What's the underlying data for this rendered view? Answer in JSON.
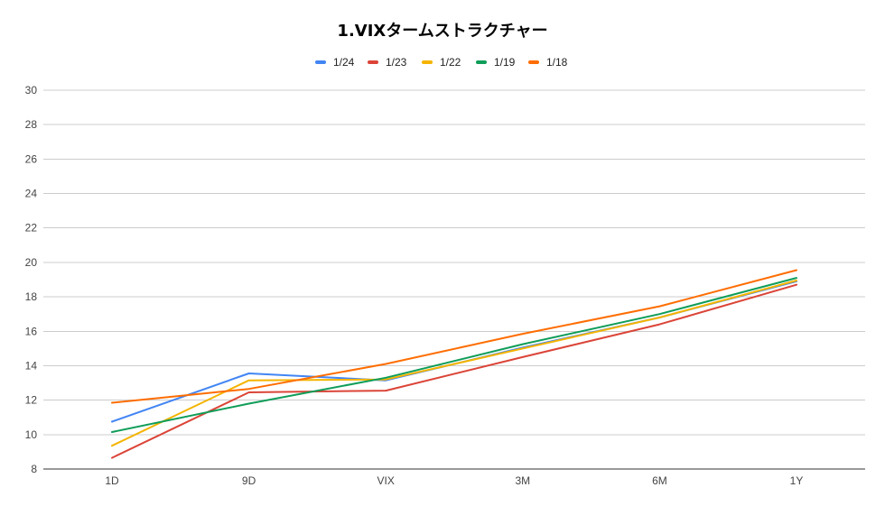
{
  "chart_data": {
    "type": "line",
    "title": "1.VIXタームストラクチャー",
    "categories": [
      "1D",
      "9D",
      "VIX",
      "3M",
      "6M",
      "1Y"
    ],
    "ylim": [
      8,
      30
    ],
    "yticks": [
      8,
      10,
      12,
      14,
      16,
      18,
      20,
      22,
      24,
      26,
      28,
      30
    ],
    "grid": true,
    "legend_position": "top",
    "series": [
      {
        "name": "1/24",
        "color": "#4285f4",
        "values": [
          10.75,
          13.55,
          13.15,
          15.05,
          16.8,
          18.9
        ]
      },
      {
        "name": "1/23",
        "color": "#db4437",
        "values": [
          8.65,
          12.45,
          12.55,
          14.5,
          16.4,
          18.7
        ]
      },
      {
        "name": "1/22",
        "color": "#f4b400",
        "values": [
          9.35,
          13.15,
          13.2,
          15.0,
          16.8,
          18.95
        ]
      },
      {
        "name": "1/19",
        "color": "#0f9d58",
        "values": [
          10.15,
          11.8,
          13.3,
          15.25,
          17.0,
          19.1
        ]
      },
      {
        "name": "1/18",
        "color": "#ff6d01",
        "values": [
          11.85,
          12.65,
          14.1,
          15.85,
          17.45,
          19.55
        ]
      }
    ]
  }
}
